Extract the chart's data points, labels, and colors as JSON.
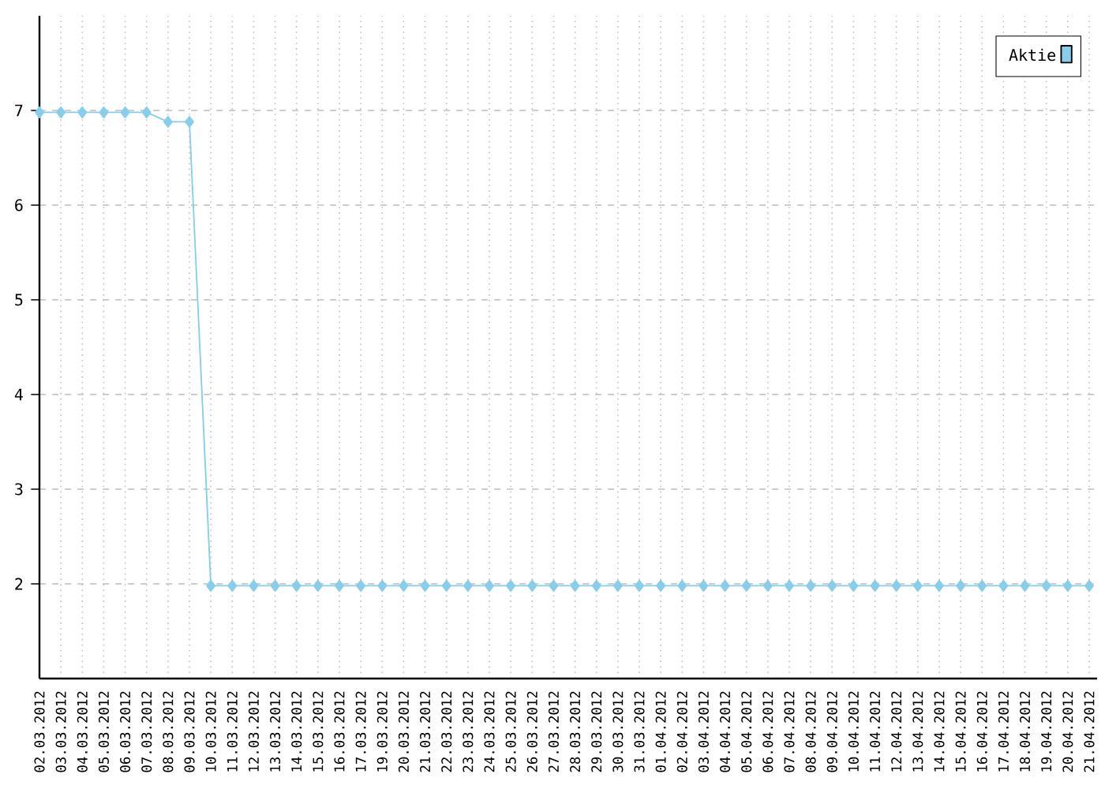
{
  "chart_data": {
    "type": "line",
    "categories": [
      "02.03.2012",
      "03.03.2012",
      "04.03.2012",
      "05.03.2012",
      "06.03.2012",
      "07.03.2012",
      "08.03.2012",
      "09.03.2012",
      "10.03.2012",
      "11.03.2012",
      "12.03.2012",
      "13.03.2012",
      "14.03.2012",
      "15.03.2012",
      "16.03.2012",
      "17.03.2012",
      "19.03.2012",
      "20.03.2012",
      "21.03.2012",
      "22.03.2012",
      "23.03.2012",
      "24.03.2012",
      "25.03.2012",
      "26.03.2012",
      "27.03.2012",
      "28.03.2012",
      "29.03.2012",
      "30.03.2012",
      "31.03.2012",
      "01.04.2012",
      "02.04.2012",
      "03.04.2012",
      "04.04.2012",
      "05.04.2012",
      "06.04.2012",
      "07.04.2012",
      "08.04.2012",
      "09.04.2012",
      "10.04.2012",
      "11.04.2012",
      "12.04.2012",
      "13.04.2012",
      "14.04.2012",
      "15.04.2012",
      "16.04.2012",
      "17.04.2012",
      "18.04.2012",
      "19.04.2012",
      "20.04.2012",
      "21.04.2012"
    ],
    "series": [
      {
        "name": "Aktie",
        "color": "#87ceeb",
        "values": [
          6.98,
          6.98,
          6.98,
          6.98,
          6.98,
          6.98,
          6.88,
          6.88,
          1.98,
          1.98,
          1.98,
          1.98,
          1.98,
          1.98,
          1.98,
          1.98,
          1.98,
          1.98,
          1.98,
          1.98,
          1.98,
          1.98,
          1.98,
          1.98,
          1.98,
          1.98,
          1.98,
          1.98,
          1.98,
          1.98,
          1.98,
          1.98,
          1.98,
          1.98,
          1.98,
          1.98,
          1.98,
          1.98,
          1.98,
          1.98,
          1.98,
          1.98,
          1.98,
          1.98,
          1.98,
          1.98,
          1.98,
          1.98,
          1.98,
          1.98
        ]
      }
    ],
    "ylim": [
      1,
      8
    ],
    "yticks": [
      2,
      3,
      4,
      5,
      6,
      7
    ],
    "grid": true,
    "legend": "top right",
    "marker": "diamond",
    "line_style": "solid"
  }
}
